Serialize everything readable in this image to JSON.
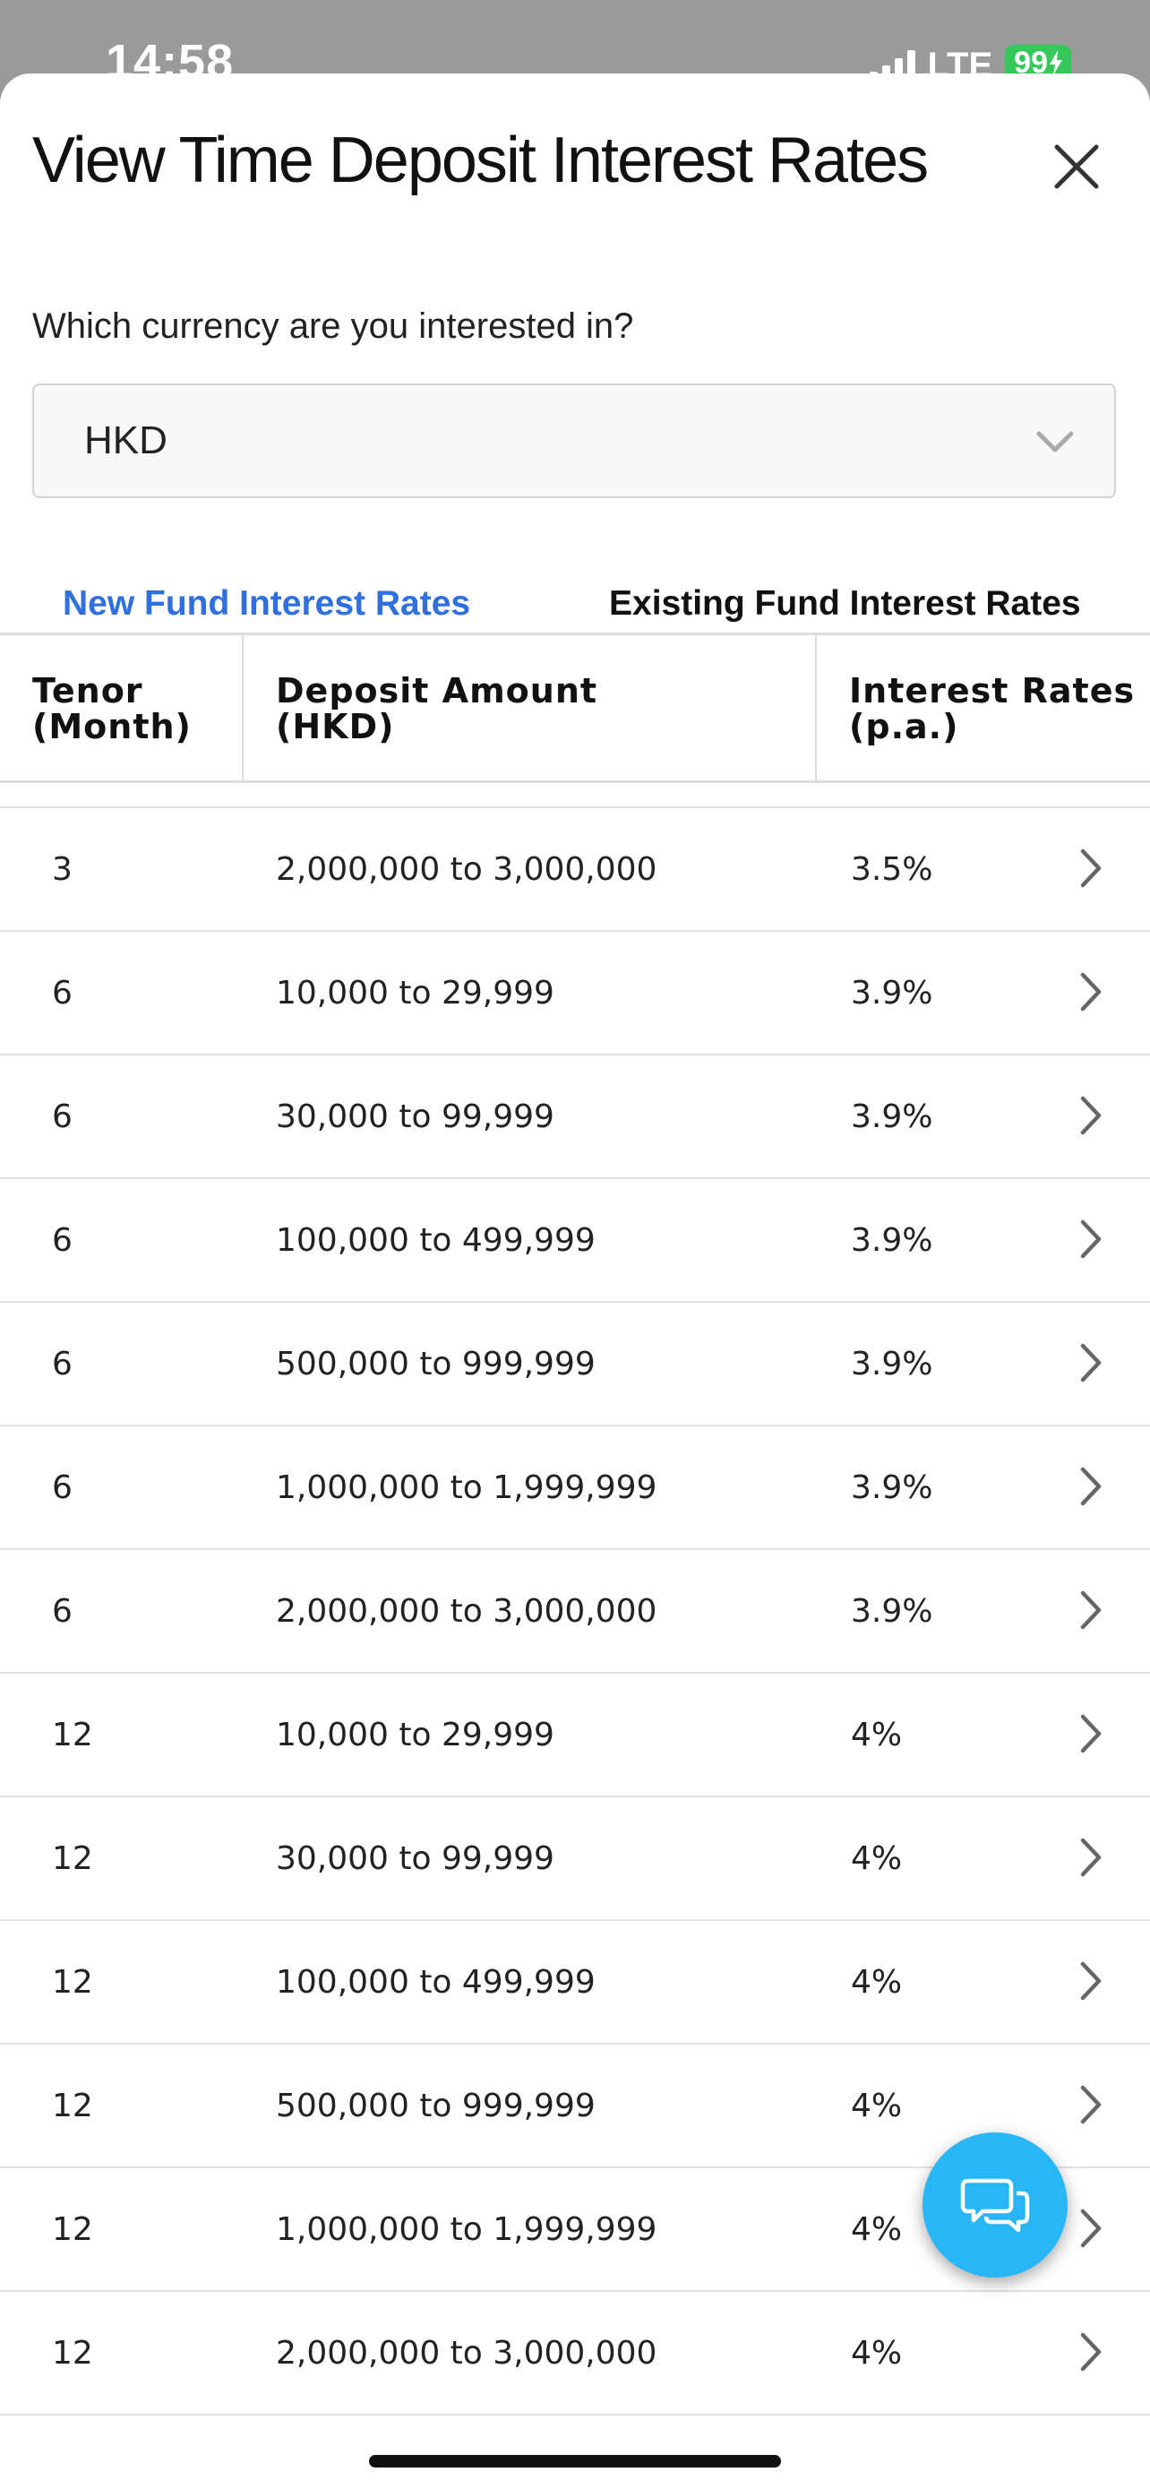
{
  "status_bar": {
    "time": "14:58",
    "network": "LTE",
    "battery": "99"
  },
  "sheet": {
    "title": "View Time Deposit Interest Rates",
    "close_icon": "close-icon"
  },
  "currency": {
    "prompt": "Which currency are you interested in?",
    "selected": "HKD"
  },
  "tabs": [
    {
      "label": "New Fund Interest Rates",
      "active": true
    },
    {
      "label": "Existing Fund Interest Rates",
      "active": false
    }
  ],
  "table": {
    "headers": {
      "tenor": "Tenor\n(Month)",
      "amount": "Deposit Amount\n(HKD)",
      "rate": "Interest Rates\n(p.a.)"
    },
    "rows": [
      {
        "tenor": "3",
        "amount": "2,000,000 to 3,000,000",
        "rate": "3.5%"
      },
      {
        "tenor": "6",
        "amount": "10,000 to 29,999",
        "rate": "3.9%"
      },
      {
        "tenor": "6",
        "amount": "30,000 to 99,999",
        "rate": "3.9%"
      },
      {
        "tenor": "6",
        "amount": "100,000 to 499,999",
        "rate": "3.9%"
      },
      {
        "tenor": "6",
        "amount": "500,000 to 999,999",
        "rate": "3.9%"
      },
      {
        "tenor": "6",
        "amount": "1,000,000 to 1,999,999",
        "rate": "3.9%"
      },
      {
        "tenor": "6",
        "amount": "2,000,000 to 3,000,000",
        "rate": "3.9%"
      },
      {
        "tenor": "12",
        "amount": "10,000 to 29,999",
        "rate": "4%"
      },
      {
        "tenor": "12",
        "amount": "30,000 to 99,999",
        "rate": "4%"
      },
      {
        "tenor": "12",
        "amount": "100,000 to 499,999",
        "rate": "4%"
      },
      {
        "tenor": "12",
        "amount": "500,000 to 999,999",
        "rate": "4%"
      },
      {
        "tenor": "12",
        "amount": "1,000,000 to 1,999,999",
        "rate": "4%"
      },
      {
        "tenor": "12",
        "amount": "2,000,000 to 3,000,000",
        "rate": "4%"
      }
    ]
  },
  "chat": {
    "icon": "chat-bubbles-icon",
    "color": "#29b6f6"
  },
  "colors": {
    "accent": "#2f6fe0",
    "battery": "#34c759"
  }
}
